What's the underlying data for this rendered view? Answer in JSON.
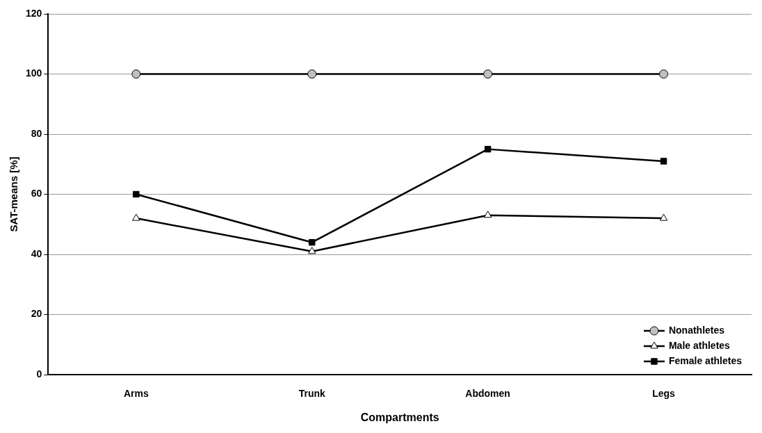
{
  "chart_data": {
    "type": "line",
    "xlabel": "Compartments",
    "ylabel": "SAT-means [%]",
    "categories": [
      "Arms",
      "Trunk",
      "Abdomen",
      "Legs"
    ],
    "series": [
      {
        "name": "Nonathletes",
        "color": "#c0c0c0",
        "marker": "circle",
        "values": [
          100,
          100,
          100,
          100
        ]
      },
      {
        "name": "Male athletes",
        "color": "#ffffff",
        "marker": "triangle",
        "values": [
          52,
          41,
          53,
          52
        ]
      },
      {
        "name": "Female athletes",
        "color": "#000000",
        "marker": "square",
        "values": [
          60,
          44,
          75,
          71
        ]
      }
    ],
    "ylim": [
      0,
      120
    ],
    "yticks": [
      0,
      20,
      40,
      60,
      80,
      100,
      120
    ],
    "grid": "y",
    "legend": "bottom right"
  }
}
